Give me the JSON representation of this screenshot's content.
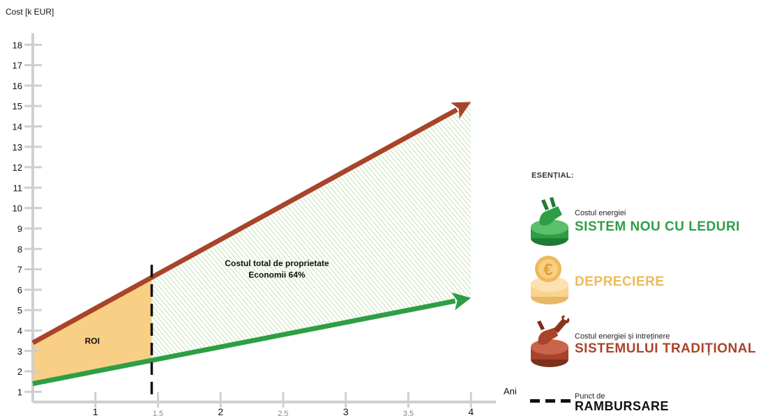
{
  "chart_data": {
    "type": "line",
    "ylabel": "Cost [k EUR]",
    "xlabel": "Ani",
    "ylim": [
      0.5,
      18.5
    ],
    "xlim": [
      0.5,
      4.2
    ],
    "y_ticks": [
      1,
      2,
      3,
      4,
      5,
      6,
      7,
      8,
      9,
      10,
      11,
      12,
      13,
      14,
      15,
      16,
      17,
      18
    ],
    "x_ticks": [
      {
        "value": 1,
        "label": "1",
        "minor": false
      },
      {
        "value": 1.5,
        "label": "1.5",
        "minor": true
      },
      {
        "value": 2,
        "label": "2",
        "minor": false
      },
      {
        "value": 2.5,
        "label": "2.5",
        "minor": true
      },
      {
        "value": 3,
        "label": "3",
        "minor": false
      },
      {
        "value": 3.5,
        "label": "3.5",
        "minor": true
      },
      {
        "value": 4,
        "label": "4",
        "minor": false
      }
    ],
    "series": [
      {
        "key": "traditional",
        "color": "#a8442a",
        "x": [
          0.5,
          4.0
        ],
        "y": [
          3.4,
          15.2
        ]
      },
      {
        "key": "led",
        "color": "#2e9e45",
        "x": [
          0.5,
          4.0
        ],
        "y": [
          1.4,
          5.6
        ]
      }
    ],
    "payback_x": 1.45,
    "roi_region": {
      "x": [
        0.5,
        1.45
      ],
      "label": "ROI",
      "color": "#f8cf84"
    },
    "savings_region": {
      "x": [
        1.45,
        4.0
      ],
      "label_line1": "Costul total de proprietate",
      "label_line2": "Economii 64%",
      "color": "#a8cf8a"
    }
  },
  "legend": {
    "title": "ESENȚIAL:",
    "items": [
      {
        "icon": "led-plug-coin-icon",
        "small": "Costul energiei",
        "big": "SISTEM NOU CU LEDURI",
        "color": "#2e9e45"
      },
      {
        "icon": "euro-coin-icon",
        "small": "",
        "big": "DEPRECIERE",
        "color": "#f0b85a"
      },
      {
        "icon": "wrench-plug-coin-icon",
        "small": "Costul energiei și intreținere",
        "big": "SISTEMULUI TRADIȚIONAL",
        "color": "#a8442a"
      }
    ],
    "payback": {
      "small": "Punct de",
      "big": "RAMBURSARE"
    }
  }
}
